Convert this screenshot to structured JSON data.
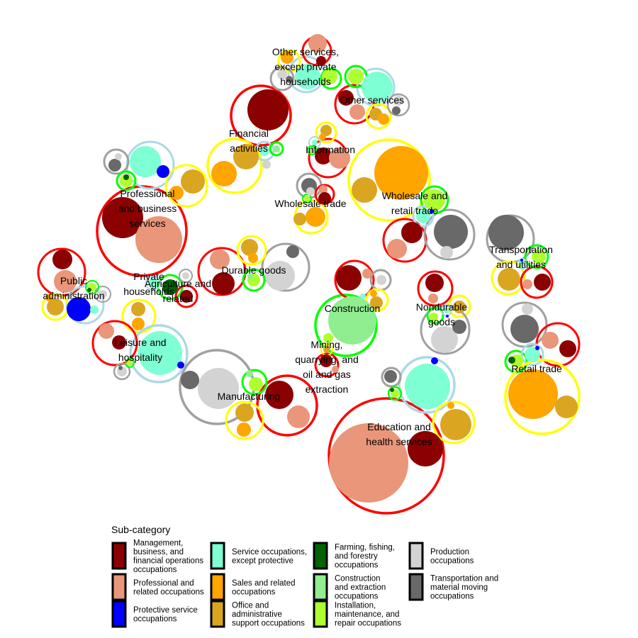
{
  "chart_data": {
    "type": "packed-bubble",
    "title": "",
    "legend": {
      "title": "Sub-category",
      "placement": "bottom",
      "items": [
        {
          "key": "mgmt",
          "label": [
            "Management,",
            "business, and",
            "financial operations",
            "occupations"
          ],
          "color": "#8b0000"
        },
        {
          "key": "prof",
          "label": [
            "Professional and",
            "related occupations"
          ],
          "color": "#e9967a"
        },
        {
          "key": "prot",
          "label": [
            "Protective service",
            "occupations"
          ],
          "color": "#0000ff"
        },
        {
          "key": "serv",
          "label": [
            "Service occupations,",
            "except protective"
          ],
          "color": "#7fffd4"
        },
        {
          "key": "sales",
          "label": [
            "Sales and related",
            "occupations"
          ],
          "color": "#ffa500"
        },
        {
          "key": "office",
          "label": [
            "Office and",
            "administrative",
            "support occupations"
          ],
          "color": "#daa520"
        },
        {
          "key": "farm",
          "label": [
            "Farming, fishing,",
            "and forestry",
            "occupations"
          ],
          "color": "#006400"
        },
        {
          "key": "constr",
          "label": [
            "Construction",
            "and extraction",
            "occupations"
          ],
          "color": "#90ee90"
        },
        {
          "key": "install",
          "label": [
            "Installation,",
            "maintenance, and",
            "repair occupations"
          ],
          "color": "#adff2f"
        },
        {
          "key": "prod",
          "label": [
            "Production",
            "occupations"
          ],
          "color": "#d3d3d3"
        },
        {
          "key": "transp",
          "label": [
            "Transportation and",
            "material moving",
            "occupations"
          ],
          "color": "#696969"
        }
      ]
    },
    "category_colors": {
      "management_professional": "#ff0000",
      "service": "#add8e6",
      "sales_office": "#ffff00",
      "natural_resources_construction": "#00ff00",
      "production_transportation": "#a0a0a0"
    },
    "industries": [
      {
        "name": "Other services, except private households",
        "label_lines": [
          "Other services,",
          "except private",
          "households"
        ]
      },
      {
        "name": "Other services",
        "label_lines": [
          "Other services"
        ]
      },
      {
        "name": "Financial activities",
        "label_lines": [
          "Financial",
          "activities"
        ]
      },
      {
        "name": "Information",
        "label_lines": [
          "Information"
        ]
      },
      {
        "name": "Professional and business services",
        "label_lines": [
          "Professional",
          "and business",
          "services"
        ]
      },
      {
        "name": "Wholesale trade",
        "label_lines": [
          "Wholesale trade"
        ]
      },
      {
        "name": "Wholesale and retail trade",
        "label_lines": [
          "Wholesale and",
          "retail trade"
        ]
      },
      {
        "name": "Transportation and utilities",
        "label_lines": [
          "Transportation",
          "and utilities"
        ]
      },
      {
        "name": "Public administration",
        "label_lines": [
          "Public",
          "administration"
        ]
      },
      {
        "name": "Private households",
        "label_lines": [
          "Private",
          "households"
        ]
      },
      {
        "name": "Agriculture and related",
        "label_lines": [
          "Agriculture and",
          "related"
        ]
      },
      {
        "name": "Durable goods",
        "label_lines": [
          "Durable goods"
        ]
      },
      {
        "name": "Construction",
        "label_lines": [
          "Construction"
        ]
      },
      {
        "name": "Nondurable goods",
        "label_lines": [
          "Nondurable",
          "goods"
        ]
      },
      {
        "name": "Leisure and hospitality",
        "label_lines": [
          "Leisure and",
          "hospitality"
        ]
      },
      {
        "name": "Mining, quarrying, and oil and gas extraction",
        "label_lines": [
          "Mining,",
          "quarrying, and",
          "oil and gas",
          "extraction"
        ]
      },
      {
        "name": "Retail trade",
        "label_lines": [
          "Retail trade"
        ]
      },
      {
        "name": "Manufacturing",
        "label_lines": [
          "Manufacturing"
        ]
      },
      {
        "name": "Education and health services",
        "label_lines": [
          "Education and",
          "health services"
        ]
      }
    ]
  }
}
